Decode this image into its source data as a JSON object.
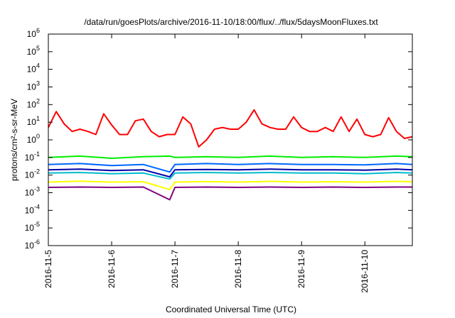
{
  "chart_data": {
    "type": "line",
    "title": "/data/run/goesPlots/archive/2016-11-10/18:00/flux/../flux/5daysMoonFluxes.txt",
    "xlabel": "Coordinated Universal Time (UTC)",
    "ylabel": "protons/cm²-s-sr-MeV",
    "y_scale": "log",
    "ylim": [
      1e-06,
      1000000
    ],
    "xlim": [
      "2016-11-05T00:00",
      "2016-11-10T18:00"
    ],
    "x_ticks": [
      "2016-11-5",
      "2016-11-6",
      "2016-11-7",
      "2016-11-8",
      "2016-11-9",
      "2016-11-10"
    ],
    "y_tick_exponents": [
      -6,
      -5,
      -4,
      -3,
      -2,
      -1,
      0,
      1,
      2,
      3,
      4,
      5,
      6
    ],
    "y_tick_base": "10",
    "grid": false,
    "legend": "none",
    "series": [
      {
        "color": "#ff0000",
        "x": [
          "2016-11-05T00:00",
          "2016-11-05T03:00",
          "2016-11-05T06:00",
          "2016-11-05T09:00",
          "2016-11-05T12:00",
          "2016-11-05T15:00",
          "2016-11-05T18:00",
          "2016-11-05T21:00",
          "2016-11-06T00:00",
          "2016-11-06T03:00",
          "2016-11-06T06:00",
          "2016-11-06T09:00",
          "2016-11-06T12:00",
          "2016-11-06T15:00",
          "2016-11-06T18:00",
          "2016-11-06T21:00",
          "2016-11-07T00:00",
          "2016-11-07T03:00",
          "2016-11-07T06:00",
          "2016-11-07T09:00",
          "2016-11-07T12:00",
          "2016-11-07T15:00",
          "2016-11-07T18:00",
          "2016-11-07T21:00",
          "2016-11-08T00:00",
          "2016-11-08T03:00",
          "2016-11-08T06:00",
          "2016-11-08T09:00",
          "2016-11-08T12:00",
          "2016-11-08T15:00",
          "2016-11-08T18:00",
          "2016-11-08T21:00",
          "2016-11-09T00:00",
          "2016-11-09T03:00",
          "2016-11-09T06:00",
          "2016-11-09T09:00",
          "2016-11-09T12:00",
          "2016-11-09T15:00",
          "2016-11-09T18:00",
          "2016-11-09T21:00",
          "2016-11-10T00:00",
          "2016-11-10T03:00",
          "2016-11-10T06:00",
          "2016-11-10T09:00",
          "2016-11-10T12:00",
          "2016-11-10T15:00",
          "2016-11-10T18:00"
        ],
        "y": [
          5,
          40,
          8,
          3,
          4,
          3,
          2,
          30,
          7,
          2,
          2,
          12,
          15,
          3,
          1.5,
          2,
          2,
          20,
          8,
          0.4,
          1,
          4,
          5,
          4,
          4,
          10,
          50,
          8,
          5,
          4,
          4,
          20,
          5,
          3,
          3,
          5,
          3,
          20,
          3,
          15,
          2,
          1.5,
          2,
          18,
          3,
          1.2,
          1.5
        ]
      },
      {
        "color": "#00ee00",
        "x": [
          "2016-11-05T00:00",
          "2016-11-05T12:00",
          "2016-11-06T00:00",
          "2016-11-06T12:00",
          "2016-11-06T22:00",
          "2016-11-07T00:00",
          "2016-11-07T12:00",
          "2016-11-08T00:00",
          "2016-11-08T12:00",
          "2016-11-09T00:00",
          "2016-11-09T12:00",
          "2016-11-10T00:00",
          "2016-11-10T12:00",
          "2016-11-10T18:00"
        ],
        "y": [
          0.1,
          0.12,
          0.09,
          0.11,
          0.12,
          0.1,
          0.11,
          0.1,
          0.12,
          0.1,
          0.11,
          0.1,
          0.12,
          0.11
        ]
      },
      {
        "color": "#0066ff",
        "x": [
          "2016-11-05T00:00",
          "2016-11-05T12:00",
          "2016-11-06T00:00",
          "2016-11-06T12:00",
          "2016-11-06T22:00",
          "2016-11-07T00:00",
          "2016-11-07T12:00",
          "2016-11-08T00:00",
          "2016-11-08T12:00",
          "2016-11-09T00:00",
          "2016-11-09T12:00",
          "2016-11-10T00:00",
          "2016-11-10T12:00",
          "2016-11-10T18:00"
        ],
        "y": [
          0.04,
          0.045,
          0.035,
          0.04,
          0.015,
          0.04,
          0.045,
          0.04,
          0.045,
          0.04,
          0.04,
          0.038,
          0.045,
          0.04
        ]
      },
      {
        "color": "#00bbcc",
        "x": [
          "2016-11-05T00:00",
          "2016-11-05T12:00",
          "2016-11-06T00:00",
          "2016-11-06T12:00",
          "2016-11-06T22:00",
          "2016-11-07T00:00",
          "2016-11-07T12:00",
          "2016-11-08T00:00",
          "2016-11-08T12:00",
          "2016-11-09T00:00",
          "2016-11-09T12:00",
          "2016-11-10T00:00",
          "2016-11-10T12:00",
          "2016-11-10T18:00"
        ],
        "y": [
          0.013,
          0.014,
          0.012,
          0.013,
          0.006,
          0.013,
          0.014,
          0.013,
          0.014,
          0.013,
          0.013,
          0.012,
          0.014,
          0.013
        ]
      },
      {
        "color": "#0000aa",
        "x": [
          "2016-11-05T00:00",
          "2016-11-05T12:00",
          "2016-11-06T00:00",
          "2016-11-06T12:00",
          "2016-11-06T22:00",
          "2016-11-07T00:00",
          "2016-11-07T12:00",
          "2016-11-08T00:00",
          "2016-11-08T12:00",
          "2016-11-09T00:00",
          "2016-11-09T12:00",
          "2016-11-10T00:00",
          "2016-11-10T12:00",
          "2016-11-10T18:00"
        ],
        "y": [
          0.02,
          0.022,
          0.018,
          0.02,
          0.008,
          0.02,
          0.021,
          0.02,
          0.022,
          0.02,
          0.02,
          0.019,
          0.022,
          0.02
        ]
      },
      {
        "color": "#ffff00",
        "x": [
          "2016-11-05T00:00",
          "2016-11-05T12:00",
          "2016-11-06T00:00",
          "2016-11-06T12:00",
          "2016-11-06T22:00",
          "2016-11-07T00:00",
          "2016-11-07T12:00",
          "2016-11-08T00:00",
          "2016-11-08T12:00",
          "2016-11-09T00:00",
          "2016-11-09T12:00",
          "2016-11-10T00:00",
          "2016-11-10T12:00",
          "2016-11-10T18:00"
        ],
        "y": [
          0.004,
          0.0045,
          0.004,
          0.0042,
          0.0015,
          0.004,
          0.0043,
          0.004,
          0.0044,
          0.004,
          0.0042,
          0.004,
          0.0044,
          0.0042
        ]
      },
      {
        "color": "#800080",
        "x": [
          "2016-11-05T00:00",
          "2016-11-05T12:00",
          "2016-11-06T00:00",
          "2016-11-06T12:00",
          "2016-11-06T22:00",
          "2016-11-07T00:00",
          "2016-11-07T12:00",
          "2016-11-08T00:00",
          "2016-11-08T12:00",
          "2016-11-09T00:00",
          "2016-11-09T12:00",
          "2016-11-10T00:00",
          "2016-11-10T12:00",
          "2016-11-10T18:00"
        ],
        "y": [
          0.002,
          0.0021,
          0.002,
          0.0021,
          0.0004,
          0.002,
          0.0021,
          0.002,
          0.0021,
          0.002,
          0.0021,
          0.002,
          0.0021,
          0.0021
        ]
      }
    ]
  }
}
